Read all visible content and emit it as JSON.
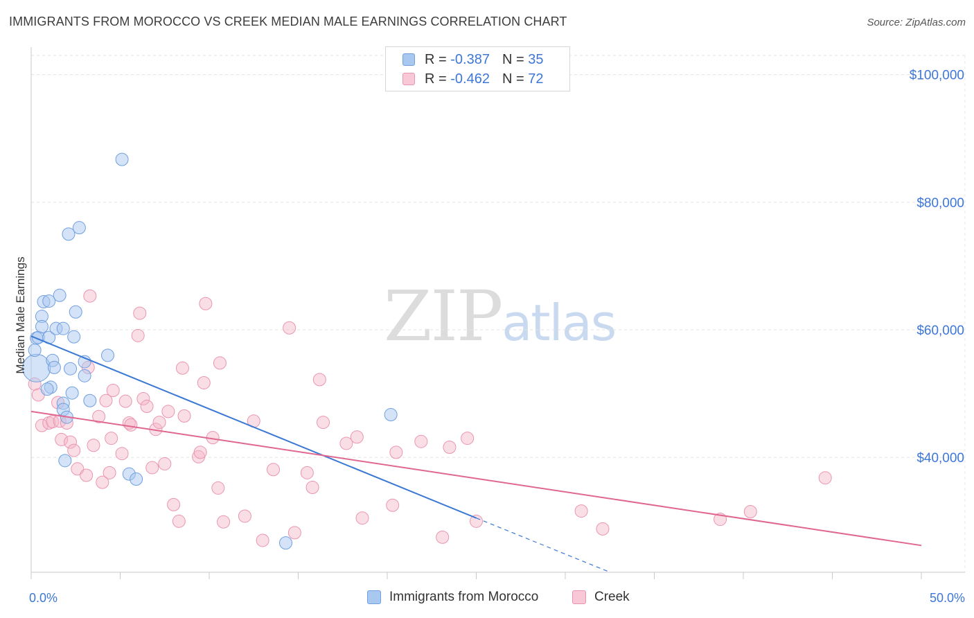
{
  "title": "IMMIGRANTS FROM MOROCCO VS CREEK MEDIAN MALE EARNINGS CORRELATION CHART",
  "source": "Source: ZipAtlas.com",
  "watermark": {
    "zip": "ZIP",
    "atlas": "atlas"
  },
  "colors": {
    "blue": "#3a78d4",
    "blue_fill": "#a9c8ef",
    "pink": "#e0678f",
    "pink_fill": "#f4b5c8",
    "axis_text": "#3d77d6"
  },
  "legend": {
    "rows": [
      {
        "r_label": "R =",
        "r_value": "-0.387",
        "n_label": "N =",
        "n_value": "35"
      },
      {
        "r_label": "R =",
        "r_value": "-0.462",
        "n_label": "N =",
        "n_value": "72"
      }
    ]
  },
  "bottom_legend": {
    "series1": "Immigrants from Morocco",
    "series2": "Creek"
  },
  "chart_data": {
    "type": "scatter",
    "title": "IMMIGRANTS FROM MOROCCO VS CREEK MEDIAN MALE EARNINGS CORRELATION CHART",
    "xlabel": "",
    "ylabel": "Median Male Earnings",
    "xlim": [
      0,
      50
    ],
    "ylim": [
      22000,
      103000
    ],
    "x_tick_labels": [
      "0.0%",
      "50.0%"
    ],
    "y_ticks": [
      40000,
      60000,
      80000,
      100000
    ],
    "y_tick_labels": [
      "$40,000",
      "$60,000",
      "$80,000",
      "$100,000"
    ],
    "series": [
      {
        "name": "Immigrants from Morocco",
        "R": -0.387,
        "N": 35,
        "points": [
          [
            0.3,
            54000
          ],
          [
            0.2,
            56800
          ],
          [
            0.3,
            58700
          ],
          [
            0.4,
            58800
          ],
          [
            0.6,
            62100
          ],
          [
            0.6,
            60500
          ],
          [
            0.7,
            64400
          ],
          [
            1.0,
            64500
          ],
          [
            1.6,
            65400
          ],
          [
            1.0,
            58800
          ],
          [
            1.4,
            60200
          ],
          [
            1.8,
            60200
          ],
          [
            2.5,
            62800
          ],
          [
            2.4,
            58900
          ],
          [
            1.2,
            55200
          ],
          [
            1.3,
            54100
          ],
          [
            1.1,
            51000
          ],
          [
            0.9,
            50700
          ],
          [
            2.2,
            53900
          ],
          [
            3.0,
            55000
          ],
          [
            3.0,
            52800
          ],
          [
            4.3,
            56000
          ],
          [
            2.3,
            50100
          ],
          [
            3.3,
            48900
          ],
          [
            1.8,
            48500
          ],
          [
            1.8,
            47500
          ],
          [
            2.0,
            46300
          ],
          [
            1.9,
            39500
          ],
          [
            5.5,
            37400
          ],
          [
            5.9,
            36600
          ],
          [
            2.1,
            75000
          ],
          [
            2.7,
            76000
          ],
          [
            5.1,
            86700
          ],
          [
            20.2,
            46700
          ],
          [
            14.3,
            26600
          ]
        ],
        "trendline": {
          "x0": 0,
          "y0": 59000,
          "x1": 25,
          "y1": 30500,
          "dashed_to_x": 35,
          "dashed_to_y": 19200
        }
      },
      {
        "name": "Creek",
        "R": -0.462,
        "N": 72,
        "points": [
          [
            0.2,
            51500
          ],
          [
            0.4,
            49800
          ],
          [
            0.6,
            45000
          ],
          [
            1.0,
            45400
          ],
          [
            1.2,
            45600
          ],
          [
            1.6,
            45700
          ],
          [
            1.5,
            48600
          ],
          [
            1.7,
            42800
          ],
          [
            2.0,
            45400
          ],
          [
            2.2,
            42400
          ],
          [
            2.4,
            41100
          ],
          [
            2.6,
            38200
          ],
          [
            3.1,
            37200
          ],
          [
            3.2,
            54100
          ],
          [
            3.3,
            65300
          ],
          [
            3.8,
            46400
          ],
          [
            3.5,
            41900
          ],
          [
            4.2,
            48900
          ],
          [
            4.4,
            37600
          ],
          [
            4.5,
            43000
          ],
          [
            4.6,
            50500
          ],
          [
            4.0,
            36100
          ],
          [
            5.1,
            40600
          ],
          [
            5.3,
            48800
          ],
          [
            5.5,
            45400
          ],
          [
            5.6,
            45100
          ],
          [
            6.0,
            59100
          ],
          [
            6.1,
            62600
          ],
          [
            6.3,
            49200
          ],
          [
            6.5,
            48000
          ],
          [
            6.8,
            38400
          ],
          [
            7.0,
            44400
          ],
          [
            7.2,
            45500
          ],
          [
            7.5,
            39000
          ],
          [
            7.7,
            47200
          ],
          [
            8.0,
            32600
          ],
          [
            8.3,
            30000
          ],
          [
            8.6,
            46500
          ],
          [
            8.5,
            54000
          ],
          [
            9.4,
            40100
          ],
          [
            9.5,
            40800
          ],
          [
            9.7,
            51700
          ],
          [
            9.8,
            64100
          ],
          [
            10.2,
            43100
          ],
          [
            10.5,
            35200
          ],
          [
            10.6,
            54800
          ],
          [
            10.8,
            29900
          ],
          [
            12.0,
            30800
          ],
          [
            12.5,
            45700
          ],
          [
            13.0,
            27000
          ],
          [
            13.6,
            38100
          ],
          [
            14.5,
            60300
          ],
          [
            14.8,
            28200
          ],
          [
            15.5,
            37600
          ],
          [
            15.8,
            35300
          ],
          [
            16.2,
            52200
          ],
          [
            16.4,
            45500
          ],
          [
            17.7,
            42200
          ],
          [
            18.3,
            43200
          ],
          [
            18.6,
            30500
          ],
          [
            20.3,
            32500
          ],
          [
            20.5,
            40800
          ],
          [
            21.9,
            42500
          ],
          [
            23.1,
            27500
          ],
          [
            23.5,
            41600
          ],
          [
            24.5,
            43000
          ],
          [
            25.0,
            30000
          ],
          [
            30.9,
            31600
          ],
          [
            32.1,
            28800
          ],
          [
            38.7,
            30300
          ],
          [
            40.4,
            31500
          ],
          [
            44.6,
            36800
          ]
        ],
        "trendline": {
          "x0": 0,
          "y0": 47200,
          "x1": 50,
          "y1": 26200
        }
      }
    ]
  }
}
